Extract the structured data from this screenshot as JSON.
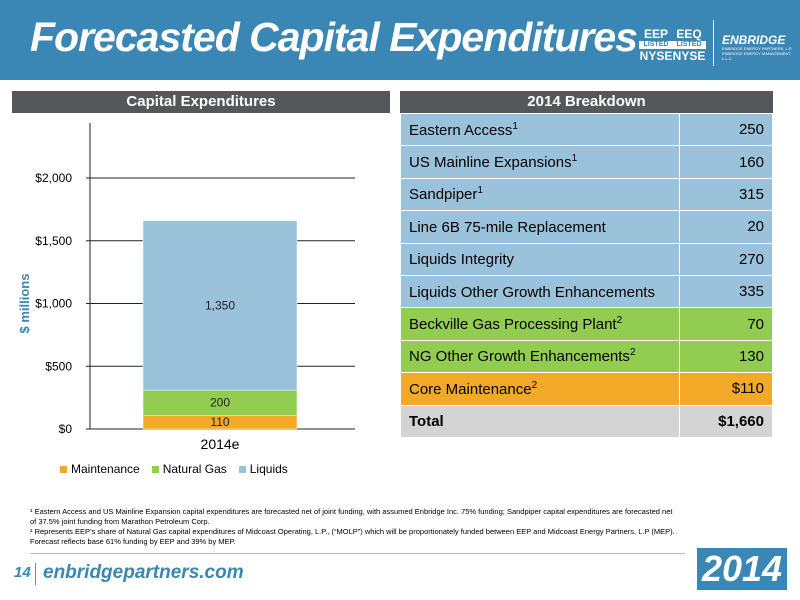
{
  "header": {
    "title": "Forecasted Capital Expenditures",
    "tickers": [
      {
        "symbol": "EEP",
        "listed": "LISTED",
        "exchange": "NYSE"
      },
      {
        "symbol": "EEQ",
        "listed": "LISTED",
        "exchange": "NYSE"
      }
    ],
    "logo": {
      "name": "ENBRIDGE",
      "sub1": "ENBRIDGE ENERGY PARTNERS, L.P.",
      "sub2": "ENBRIDGE ENERGY MANAGEMENT, L.L.C."
    }
  },
  "chart_panel": {
    "header": "Capital Expenditures"
  },
  "table_panel": {
    "header": "2014 Breakdown"
  },
  "chart_data": {
    "type": "bar",
    "stacked": true,
    "categories": [
      "2014e"
    ],
    "series": [
      {
        "name": "Maintenance",
        "values": [
          110
        ],
        "label": "110",
        "color": "#f2a928"
      },
      {
        "name": "Natural Gas",
        "values": [
          200
        ],
        "label": "200",
        "color": "#92cd52"
      },
      {
        "name": "Liquids",
        "values": [
          1350
        ],
        "label": "1,350",
        "color": "#9ac2db"
      }
    ],
    "ylabel": "$ millions",
    "ylim": [
      0,
      2000
    ],
    "ytick_values": [
      0,
      500,
      1000,
      1500,
      2000
    ],
    "ytick_labels": [
      "$0",
      "$500",
      "$1,000",
      "$1,500",
      "$2,000"
    ],
    "grid": true,
    "legend": "bottom"
  },
  "breakdown": {
    "rows": [
      {
        "label": "Eastern Access",
        "sup": "1",
        "value": "250",
        "group": "liq"
      },
      {
        "label": "US Mainline Expansions",
        "sup": "1",
        "value": "160",
        "group": "liq"
      },
      {
        "label": "Sandpiper",
        "sup": "1",
        "value": "315",
        "group": "liq"
      },
      {
        "label": "Line 6B 75-mile Replacement",
        "sup": "",
        "value": "20",
        "group": "liq"
      },
      {
        "label": "Liquids Integrity",
        "sup": "",
        "value": "270",
        "group": "liq"
      },
      {
        "label": "Liquids Other Growth Enhancements",
        "sup": "",
        "value": "335",
        "group": "liq"
      },
      {
        "label": "Beckville Gas Processing Plant",
        "sup": "2",
        "value": "70",
        "group": "gas"
      },
      {
        "label": "NG Other Growth Enhancements",
        "sup": "2",
        "value": "130",
        "group": "gas"
      },
      {
        "label": "Core Maintenance",
        "sup": "2",
        "value": "$110",
        "group": "core"
      }
    ],
    "total": {
      "label": "Total",
      "value": "$1,660"
    }
  },
  "footnotes": {
    "note1": "¹ Eastern Access and US Mainline Expansion capital expenditures are forecasted net of joint funding, with assumed Enbridge Inc. 75% funding; Sandpiper capital expenditures are forecasted net of 37.5% joint funding from Marathon Petroleum Corp.",
    "note2": "² Represents EEP’s share of Natural Gas capital expenditures of Midcoast Operating, L.P., (“MOLP”) which will be proportionately funded between EEP and Midcoast Energy Partners, L.P (MEP). Forecast reflects base 61% funding by EEP and 39% by MEP."
  },
  "footer": {
    "page": "14",
    "site": "enbridgepartners.com",
    "year": "2014"
  },
  "colors": {
    "brand": "#3a86b4",
    "header_gray": "#55585b"
  }
}
